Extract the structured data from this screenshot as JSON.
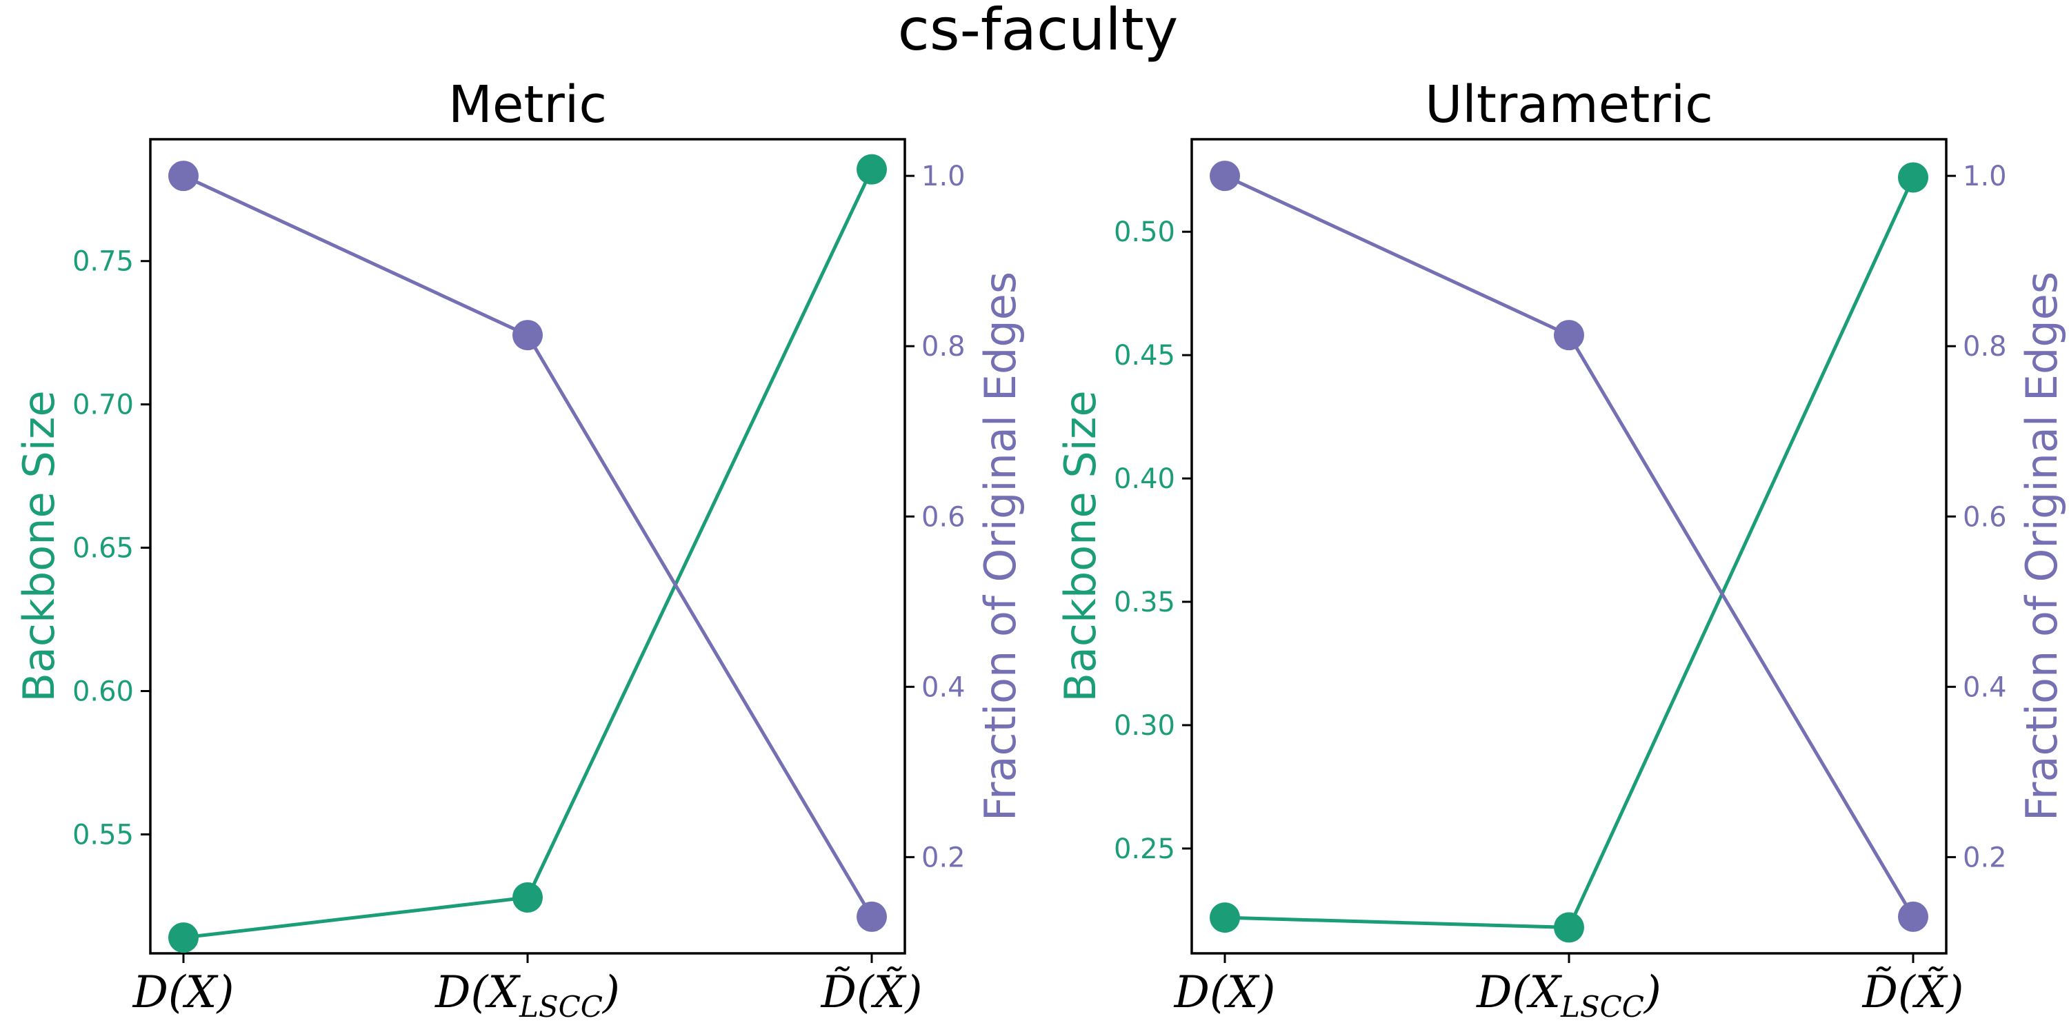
{
  "suptitle": "cs-faculty",
  "colors": {
    "backbone": "#1b9e77",
    "fraction": "#7570b3"
  },
  "chart_data": [
    {
      "type": "line",
      "title": "Metric",
      "categories": [
        "D(X)",
        "D(X_LSCC)",
        "D̃(X̃)"
      ],
      "category_labels": [
        {
          "main": "D(X)",
          "sub": ""
        },
        {
          "main": "D(X",
          "sub": "LSCC",
          "close": ")"
        },
        {
          "main": "D̃(X̃)",
          "sub": ""
        }
      ],
      "left_axis": {
        "label": "Backbone Size",
        "ylim": [
          0.5085,
          0.7925
        ],
        "ticks": [
          "0.55",
          "0.60",
          "0.65",
          "0.70",
          "0.75"
        ]
      },
      "right_axis": {
        "label": "Fraction of Original Edges",
        "ylim": [
          0.087,
          1.043
        ],
        "ticks": [
          "0.2",
          "0.4",
          "0.6",
          "0.8",
          "1.0"
        ]
      },
      "series": [
        {
          "name": "Backbone Size",
          "axis": "left",
          "values": [
            0.514,
            0.528,
            0.782
          ]
        },
        {
          "name": "Fraction of Original Edges",
          "axis": "right",
          "values": [
            1.0,
            0.813,
            0.13
          ]
        }
      ],
      "grid": false
    },
    {
      "type": "line",
      "title": "Ultrametric",
      "categories": [
        "D(X)",
        "D(X_LSCC)",
        "D̃(X̃)"
      ],
      "category_labels": [
        {
          "main": "D(X)",
          "sub": ""
        },
        {
          "main": "D(X",
          "sub": "LSCC",
          "close": ")"
        },
        {
          "main": "D̃(X̃)",
          "sub": ""
        }
      ],
      "left_axis": {
        "label": "Backbone Size",
        "ylim": [
          0.2075,
          0.5375
        ],
        "ticks": [
          "0.25",
          "0.30",
          "0.35",
          "0.40",
          "0.45",
          "0.50"
        ]
      },
      "right_axis": {
        "label": "Fraction of Original Edges",
        "ylim": [
          0.087,
          1.043
        ],
        "ticks": [
          "0.2",
          "0.4",
          "0.6",
          "0.8",
          "1.0"
        ]
      },
      "series": [
        {
          "name": "Backbone Size",
          "axis": "left",
          "values": [
            0.222,
            0.218,
            0.522
          ]
        },
        {
          "name": "Fraction of Original Edges",
          "axis": "right",
          "values": [
            1.0,
            0.813,
            0.13
          ]
        }
      ],
      "grid": false
    }
  ]
}
